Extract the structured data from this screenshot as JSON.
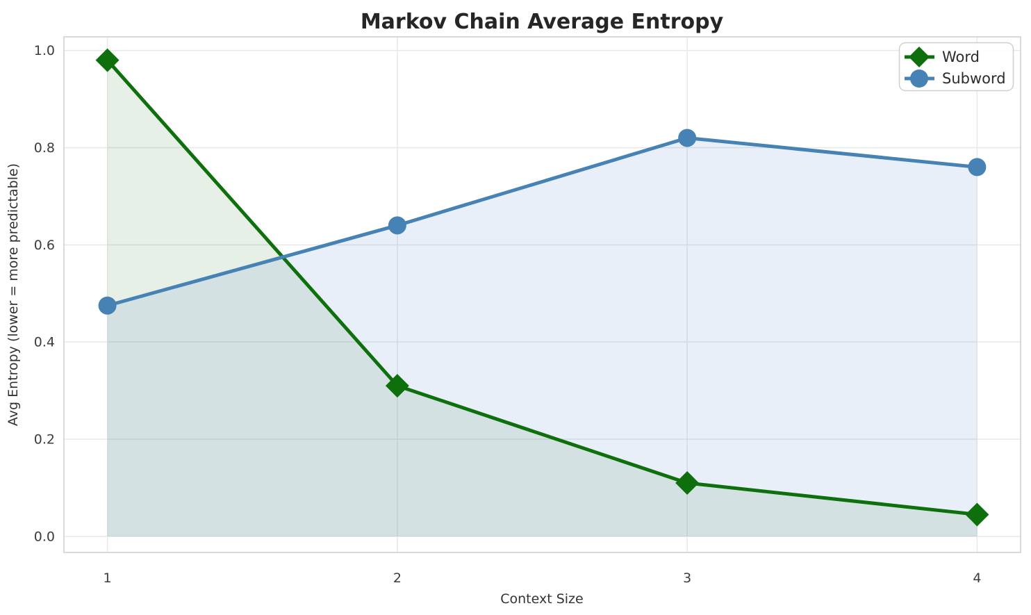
{
  "chart_data": {
    "type": "line",
    "title": "Markov Chain Average Entropy",
    "xlabel": "Context Size",
    "ylabel": "Avg Entropy (lower = more predictable)",
    "x": [
      1,
      2,
      3,
      4
    ],
    "xtick_labels": [
      "1",
      "2",
      "3",
      "4"
    ],
    "yticks": [
      0.0,
      0.2,
      0.4,
      0.6,
      0.8,
      1.0
    ],
    "ytick_labels": [
      "0.0",
      "0.2",
      "0.4",
      "0.6",
      "0.8",
      "1.0"
    ],
    "xlim": [
      0.85,
      4.15
    ],
    "ylim": [
      -0.033,
      1.028
    ],
    "grid": true,
    "grid_color": "#e8e8e8",
    "spine_color": "#d0d0d0",
    "legend_position": "upper right",
    "fill_baseline": 0,
    "series": [
      {
        "name": "Word",
        "values": [
          0.98,
          0.31,
          0.11,
          0.045
        ],
        "color": "#0d700d",
        "fill_color": "rgba(13,112,13,0.10)",
        "marker": "diamond"
      },
      {
        "name": "Subword",
        "values": [
          0.475,
          0.64,
          0.82,
          0.76
        ],
        "color": "#4682b4",
        "fill_color": "rgba(70,120,200,0.12)",
        "marker": "circle"
      }
    ]
  }
}
